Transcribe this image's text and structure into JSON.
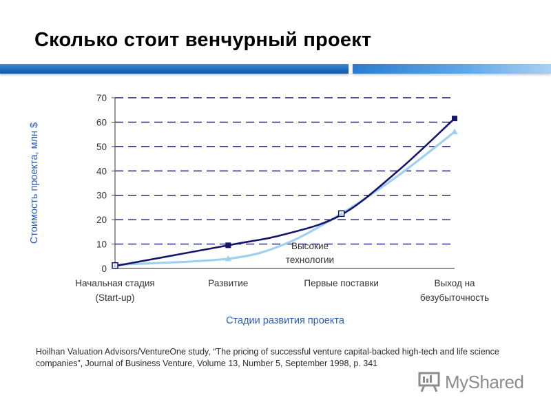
{
  "slide": {
    "title": "Сколько стоит венчурный проект",
    "source": "Hoilhan Valuation Advisors/VentureOne study, “The pricing of successful venture capital-backed high-tech and life science companies”, Journal of Business Venture, Volume 13, Number 5, September 1998, p. 341",
    "watermark": "MyShared"
  },
  "colors": {
    "title_bar": "#1d67b8",
    "axis_label": "#2b5db8",
    "series_dark": "#14146b",
    "series_light": "#9fd0f0",
    "grid": "#14146b"
  },
  "chart_data": {
    "type": "line",
    "title": "",
    "xlabel": "Стадии развития проекта",
    "ylabel": "Стоимость проекта, млн $",
    "ylim": [
      0,
      70
    ],
    "yticks": [
      0,
      10,
      20,
      30,
      40,
      50,
      60,
      70
    ],
    "grid": true,
    "grid_style": "dashed horizontal",
    "categories": [
      [
        "Начальная стадия",
        "(Start-up)"
      ],
      [
        "Развитие"
      ],
      [
        "Первые поставки"
      ],
      [
        "Выход на",
        "безубыточность"
      ]
    ],
    "x": [
      0,
      1,
      2,
      3
    ],
    "series": [
      {
        "marker": "square",
        "color": "#14146b",
        "points": [
          [
            0,
            1
          ],
          [
            1,
            9.5
          ],
          [
            1.5,
            14
          ],
          [
            2,
            22
          ],
          [
            2.5,
            40
          ],
          [
            3,
            61.5
          ]
        ]
      },
      {
        "marker": "triangle",
        "color": "#9fd0f0",
        "points": [
          [
            0,
            1.5
          ],
          [
            1,
            4
          ],
          [
            1.5,
            10
          ],
          [
            2,
            22.5
          ],
          [
            2.5,
            38
          ],
          [
            3,
            56
          ]
        ]
      }
    ],
    "annotations": [
      {
        "text": [
          "Высокие",
          "технологии"
        ],
        "near_x": 1.8,
        "near_y": 6
      }
    ]
  }
}
